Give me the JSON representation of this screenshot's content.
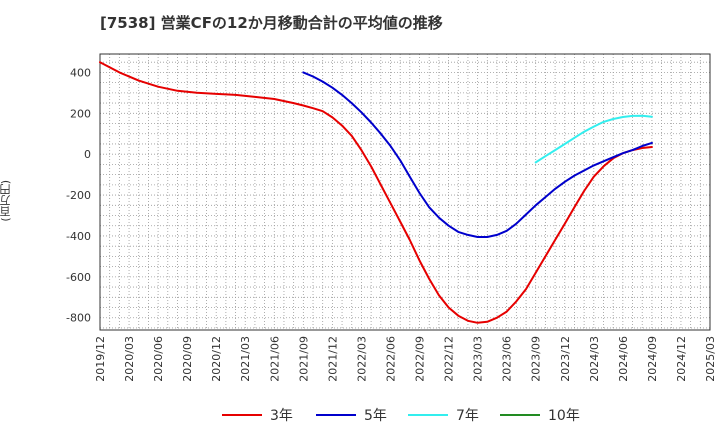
{
  "title": "[7538]  営業CFの12か月移動合計の平均値の推移",
  "y_unit": "(百万円)",
  "colors": {
    "3y": "#e60000",
    "5y": "#0000cc",
    "7y": "#33eeee",
    "10y": "#228B22"
  },
  "chart_data": {
    "type": "line",
    "title": "[7538]  営業CFの12か月移動合計の平均値の推移",
    "ylabel": "(百万円)",
    "xlabel": "",
    "ylim": [
      -860,
      490
    ],
    "xlim": [
      "2019/12",
      "2025/03"
    ],
    "grid": true,
    "legend_position": "bottom",
    "x_ticks": [
      "2019/12",
      "2020/03",
      "2020/06",
      "2020/09",
      "2020/12",
      "2021/03",
      "2021/06",
      "2021/09",
      "2021/12",
      "2022/03",
      "2022/06",
      "2022/09",
      "2022/12",
      "2023/03",
      "2023/06",
      "2023/09",
      "2023/12",
      "2024/03",
      "2024/06",
      "2024/09",
      "2024/12",
      "2025/03"
    ],
    "y_ticks": [
      400,
      200,
      0,
      -200,
      -400,
      -600,
      -800
    ],
    "y_tick_labels": [
      "400",
      "200",
      "0",
      "-200",
      "-400",
      "-600",
      "-800"
    ],
    "series": [
      {
        "name": "3年",
        "color": "#e60000",
        "x": [
          "2019/12",
          "2020/02",
          "2020/04",
          "2020/06",
          "2020/08",
          "2020/10",
          "2020/12",
          "2021/02",
          "2021/04",
          "2021/06",
          "2021/08",
          "2021/09",
          "2021/10",
          "2021/11",
          "2021/12",
          "2022/01",
          "2022/02",
          "2022/03",
          "2022/04",
          "2022/05",
          "2022/06",
          "2022/07",
          "2022/08",
          "2022/09",
          "2022/10",
          "2022/11",
          "2022/12",
          "2023/01",
          "2023/02",
          "2023/03",
          "2023/04",
          "2023/05",
          "2023/06",
          "2023/07",
          "2023/08",
          "2023/09",
          "2023/10",
          "2023/11",
          "2023/12",
          "2024/01",
          "2024/02",
          "2024/03",
          "2024/04",
          "2024/05",
          "2024/06",
          "2024/07",
          "2024/08",
          "2024/09"
        ],
        "values": [
          450,
          400,
          360,
          330,
          310,
          300,
          295,
          290,
          280,
          270,
          250,
          238,
          225,
          210,
          180,
          140,
          90,
          20,
          -60,
          -150,
          -240,
          -330,
          -420,
          -520,
          -610,
          -690,
          -750,
          -790,
          -815,
          -825,
          -820,
          -800,
          -770,
          -720,
          -660,
          -580,
          -500,
          -420,
          -340,
          -260,
          -180,
          -110,
          -60,
          -20,
          5,
          20,
          30,
          35
        ]
      },
      {
        "name": "5年",
        "color": "#0000cc",
        "x": [
          "2021/09",
          "2021/10",
          "2021/11",
          "2021/12",
          "2022/01",
          "2022/02",
          "2022/03",
          "2022/04",
          "2022/05",
          "2022/06",
          "2022/07",
          "2022/08",
          "2022/09",
          "2022/10",
          "2022/11",
          "2022/12",
          "2023/01",
          "2023/02",
          "2023/03",
          "2023/04",
          "2023/05",
          "2023/06",
          "2023/07",
          "2023/08",
          "2023/09",
          "2023/10",
          "2023/11",
          "2023/12",
          "2024/01",
          "2024/02",
          "2024/03",
          "2024/04",
          "2024/05",
          "2024/06",
          "2024/07",
          "2024/08",
          "2024/09"
        ],
        "values": [
          400,
          380,
          355,
          325,
          290,
          250,
          205,
          155,
          100,
          40,
          -30,
          -110,
          -190,
          -260,
          -310,
          -350,
          -380,
          -395,
          -405,
          -405,
          -395,
          -375,
          -340,
          -295,
          -250,
          -210,
          -170,
          -135,
          -105,
          -80,
          -55,
          -35,
          -15,
          5,
          20,
          40,
          55
        ]
      },
      {
        "name": "7年",
        "color": "#33eeee",
        "x": [
          "2023/09",
          "2023/10",
          "2023/11",
          "2023/12",
          "2024/01",
          "2024/02",
          "2024/03",
          "2024/04",
          "2024/05",
          "2024/06",
          "2024/07",
          "2024/08",
          "2024/09"
        ],
        "values": [
          -40,
          -10,
          20,
          50,
          80,
          110,
          135,
          158,
          172,
          182,
          187,
          188,
          183
        ]
      },
      {
        "name": "10年",
        "color": "#228B22",
        "x": [],
        "values": []
      }
    ]
  }
}
